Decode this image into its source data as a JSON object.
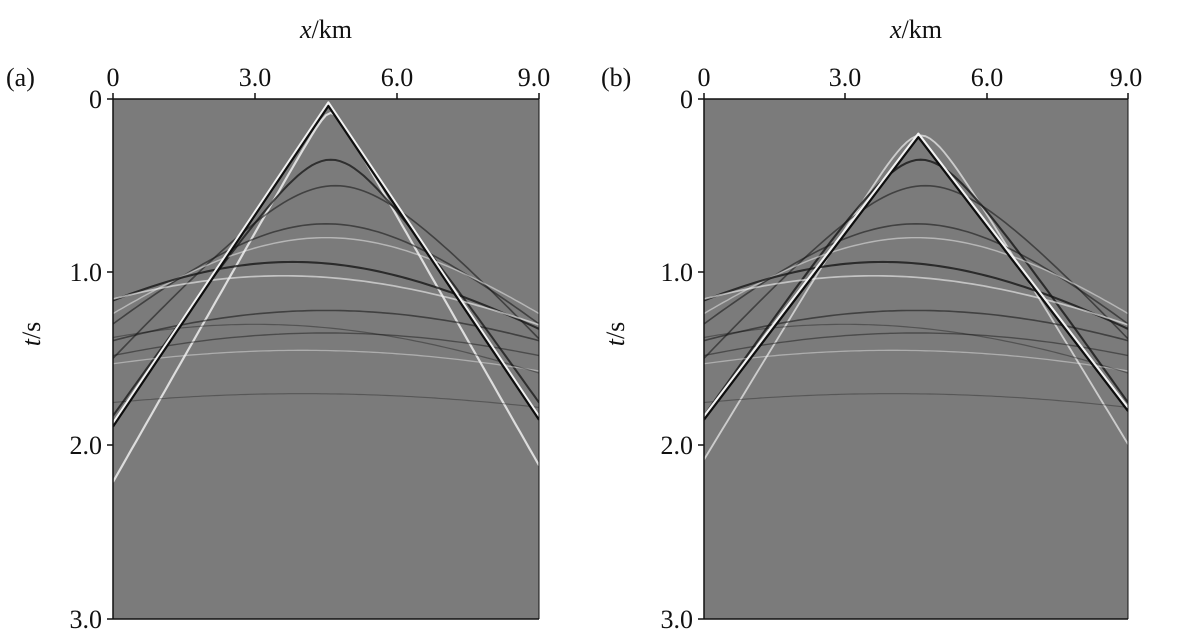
{
  "chart_data": [
    {
      "type": "heatmap",
      "panel_label": "(a)",
      "xlabel_var": "x",
      "xlabel_unit": "/km",
      "ylabel_var": "t",
      "ylabel_unit": "/s",
      "x_ticks": [
        0,
        3.0,
        6.0,
        9.0
      ],
      "x_tick_labels": [
        "0",
        "3.0",
        "6.0",
        "9.0"
      ],
      "y_ticks": [
        0,
        1.0,
        2.0,
        3.0
      ],
      "y_tick_labels": [
        "0",
        "1.0",
        "2.0",
        "3.0"
      ],
      "xlim": [
        0,
        9.0
      ],
      "ylim": [
        0,
        3.0
      ],
      "x_axis_position": "top",
      "colormap": "grayscale",
      "background_color": "#7b7b7b",
      "direct_wave_apex": {
        "x": 4.55,
        "t": 0.02
      },
      "direct_wave_ends": {
        "left_t": 1.87,
        "right_t": 1.83
      },
      "events": [
        {
          "apex_x": 4.6,
          "apex_t": 0.08,
          "curvature": 0.16,
          "shade": "white",
          "strength": 0.8
        },
        {
          "apex_x": 4.6,
          "apex_t": 0.35,
          "curvature": 0.13,
          "shade": "black",
          "strength": 0.7
        },
        {
          "apex_x": 4.7,
          "apex_t": 0.5,
          "curvature": 0.1,
          "shade": "black",
          "strength": 0.45
        },
        {
          "apex_x": 4.5,
          "apex_t": 0.72,
          "curvature": 0.08,
          "shade": "black",
          "strength": 0.45
        },
        {
          "apex_x": 4.5,
          "apex_t": 0.8,
          "curvature": 0.07,
          "shade": "white",
          "strength": 0.35
        },
        {
          "apex_x": 3.8,
          "apex_t": 0.94,
          "curvature": 0.06,
          "shade": "black",
          "strength": 0.75
        },
        {
          "apex_x": 3.6,
          "apex_t": 1.02,
          "curvature": 0.05,
          "shade": "white",
          "strength": 0.5
        },
        {
          "apex_x": 4.5,
          "apex_t": 1.22,
          "curvature": 0.05,
          "shade": "black",
          "strength": 0.45
        },
        {
          "apex_x": 4.5,
          "apex_t": 1.35,
          "curvature": 0.045,
          "shade": "black",
          "strength": 0.3
        },
        {
          "apex_x": 4.0,
          "apex_t": 1.45,
          "curvature": 0.04,
          "shade": "white",
          "strength": 0.25
        },
        {
          "apex_x": 3.0,
          "apex_t": 1.3,
          "curvature": 0.05,
          "shade": "black",
          "strength": 0.2
        },
        {
          "apex_x": 4.0,
          "apex_t": 1.7,
          "curvature": 0.035,
          "shade": "black",
          "strength": 0.15
        }
      ]
    },
    {
      "type": "heatmap",
      "panel_label": "(b)",
      "xlabel_var": "x",
      "xlabel_unit": "/km",
      "ylabel_var": "t",
      "ylabel_unit": "/s",
      "x_ticks": [
        0,
        3.0,
        6.0,
        9.0
      ],
      "x_tick_labels": [
        "0",
        "3.0",
        "6.0",
        "9.0"
      ],
      "y_ticks": [
        0,
        1.0,
        2.0,
        3.0
      ],
      "y_tick_labels": [
        "0",
        "1.0",
        "2.0",
        "3.0"
      ],
      "xlim": [
        0,
        9.0
      ],
      "ylim": [
        0,
        3.0
      ],
      "x_axis_position": "top",
      "colormap": "grayscale",
      "background_color": "#7b7b7b",
      "direct_wave_apex": {
        "x": 4.55,
        "t": 0.2
      },
      "direct_wave_ends": {
        "left_t": 1.83,
        "right_t": 1.78
      },
      "events": [
        {
          "apex_x": 4.6,
          "apex_t": 0.21,
          "curvature": 0.15,
          "shade": "white",
          "strength": 0.6
        },
        {
          "apex_x": 4.6,
          "apex_t": 0.35,
          "curvature": 0.13,
          "shade": "black",
          "strength": 0.75
        },
        {
          "apex_x": 4.7,
          "apex_t": 0.5,
          "curvature": 0.1,
          "shade": "black",
          "strength": 0.45
        },
        {
          "apex_x": 4.5,
          "apex_t": 0.72,
          "curvature": 0.08,
          "shade": "black",
          "strength": 0.45
        },
        {
          "apex_x": 4.5,
          "apex_t": 0.8,
          "curvature": 0.07,
          "shade": "white",
          "strength": 0.35
        },
        {
          "apex_x": 3.8,
          "apex_t": 0.94,
          "curvature": 0.06,
          "shade": "black",
          "strength": 0.75
        },
        {
          "apex_x": 3.6,
          "apex_t": 1.02,
          "curvature": 0.05,
          "shade": "white",
          "strength": 0.5
        },
        {
          "apex_x": 4.5,
          "apex_t": 1.22,
          "curvature": 0.05,
          "shade": "black",
          "strength": 0.45
        },
        {
          "apex_x": 4.5,
          "apex_t": 1.35,
          "curvature": 0.045,
          "shade": "black",
          "strength": 0.3
        },
        {
          "apex_x": 4.0,
          "apex_t": 1.45,
          "curvature": 0.04,
          "shade": "white",
          "strength": 0.25
        },
        {
          "apex_x": 3.0,
          "apex_t": 1.3,
          "curvature": 0.05,
          "shade": "black",
          "strength": 0.2
        },
        {
          "apex_x": 4.0,
          "apex_t": 1.7,
          "curvature": 0.035,
          "shade": "black",
          "strength": 0.15
        }
      ]
    }
  ]
}
